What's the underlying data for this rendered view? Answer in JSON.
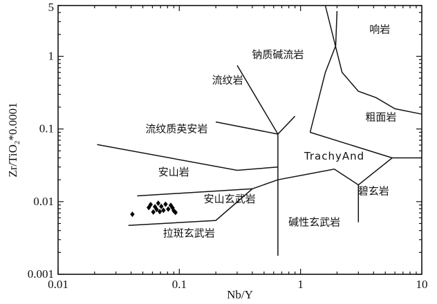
{
  "chart_data": {
    "type": "scatter",
    "title": "",
    "xlabel": "Nb/Y",
    "ylabel_base": "Zr/TiO",
    "ylabel_sub": "2",
    "ylabel_rest": "*0.0001",
    "xscale": "log",
    "yscale": "log",
    "xlim": [
      0.01,
      10
    ],
    "ylim": [
      0.001,
      5
    ],
    "grid": false,
    "x_ticks": [
      {
        "value": 0.01,
        "label": "0.01"
      },
      {
        "value": 0.1,
        "label": "0.1"
      },
      {
        "value": 1,
        "label": "1"
      },
      {
        "value": 10,
        "label": "10"
      }
    ],
    "y_ticks": [
      {
        "value": 0.001,
        "label": "0.001"
      },
      {
        "value": 0.01,
        "label": "0.01"
      },
      {
        "value": 0.1,
        "label": "0.1"
      },
      {
        "value": 1,
        "label": "1"
      },
      {
        "value": 5,
        "label": "5"
      }
    ],
    "field_labels": [
      {
        "text": "响岩",
        "x": 4.5,
        "y": 2.1
      },
      {
        "text": "钠质碱流岩",
        "x": 0.65,
        "y": 0.95
      },
      {
        "text": "流纹岩",
        "x": 0.25,
        "y": 0.42
      },
      {
        "text": "粗面岩",
        "x": 4.6,
        "y": 0.13
      },
      {
        "text": "流纹质英安岩",
        "x": 0.095,
        "y": 0.09
      },
      {
        "text": "TrachyAnd",
        "x": 1.9,
        "y": 0.038
      },
      {
        "text": "安山岩",
        "x": 0.09,
        "y": 0.023
      },
      {
        "text": "碧玄岩",
        "x": 4.0,
        "y": 0.0125
      },
      {
        "text": "安山玄武岩",
        "x": 0.26,
        "y": 0.0097
      },
      {
        "text": "碱性玄武岩",
        "x": 1.3,
        "y": 0.0047
      },
      {
        "text": "拉斑玄武岩",
        "x": 0.12,
        "y": 0.0033
      }
    ],
    "boundaries": [
      [
        [
          0.021,
          0.061
        ],
        [
          0.3,
          0.027
        ],
        [
          0.65,
          0.03
        ]
      ],
      [
        [
          0.038,
          0.0047
        ],
        [
          0.2,
          0.0055
        ],
        [
          0.4,
          0.015
        ],
        [
          0.65,
          0.02
        ],
        [
          1.9,
          0.028
        ],
        [
          3,
          0.017
        ],
        [
          5.7,
          0.04
        ],
        [
          10,
          0.04
        ]
      ],
      [
        [
          0.045,
          0.012
        ],
        [
          0.4,
          0.015
        ]
      ],
      [
        [
          0.65,
          0.0018
        ],
        [
          0.65,
          0.085
        ],
        [
          0.9,
          0.15
        ]
      ],
      [
        [
          0.2,
          0.125
        ],
        [
          0.65,
          0.085
        ]
      ],
      [
        [
          0.3,
          0.75
        ],
        [
          0.65,
          0.085
        ]
      ],
      [
        [
          1.2,
          0.09
        ],
        [
          1.6,
          0.6
        ],
        [
          1.95,
          1.4
        ],
        [
          2,
          4.2
        ]
      ],
      [
        [
          1.6,
          5
        ],
        [
          2.2,
          0.6
        ],
        [
          3,
          0.33
        ],
        [
          4.2,
          0.27
        ],
        [
          6,
          0.19
        ],
        [
          10,
          0.16
        ]
      ],
      [
        [
          1.2,
          0.09
        ],
        [
          5.7,
          0.04
        ]
      ],
      [
        [
          3,
          0.0052
        ],
        [
          3,
          0.017
        ]
      ]
    ],
    "series": [
      {
        "marker": "diamond",
        "color": "#000000",
        "points": [
          [
            0.041,
            0.0067
          ],
          [
            0.056,
            0.0083
          ],
          [
            0.058,
            0.0091
          ],
          [
            0.061,
            0.0072
          ],
          [
            0.063,
            0.0085
          ],
          [
            0.065,
            0.0078
          ],
          [
            0.067,
            0.0095
          ],
          [
            0.069,
            0.0073
          ],
          [
            0.071,
            0.0086
          ],
          [
            0.074,
            0.0076
          ],
          [
            0.077,
            0.0092
          ],
          [
            0.081,
            0.0079
          ],
          [
            0.085,
            0.0089
          ],
          [
            0.088,
            0.0082
          ],
          [
            0.09,
            0.0075
          ],
          [
            0.093,
            0.0071
          ]
        ]
      }
    ]
  }
}
